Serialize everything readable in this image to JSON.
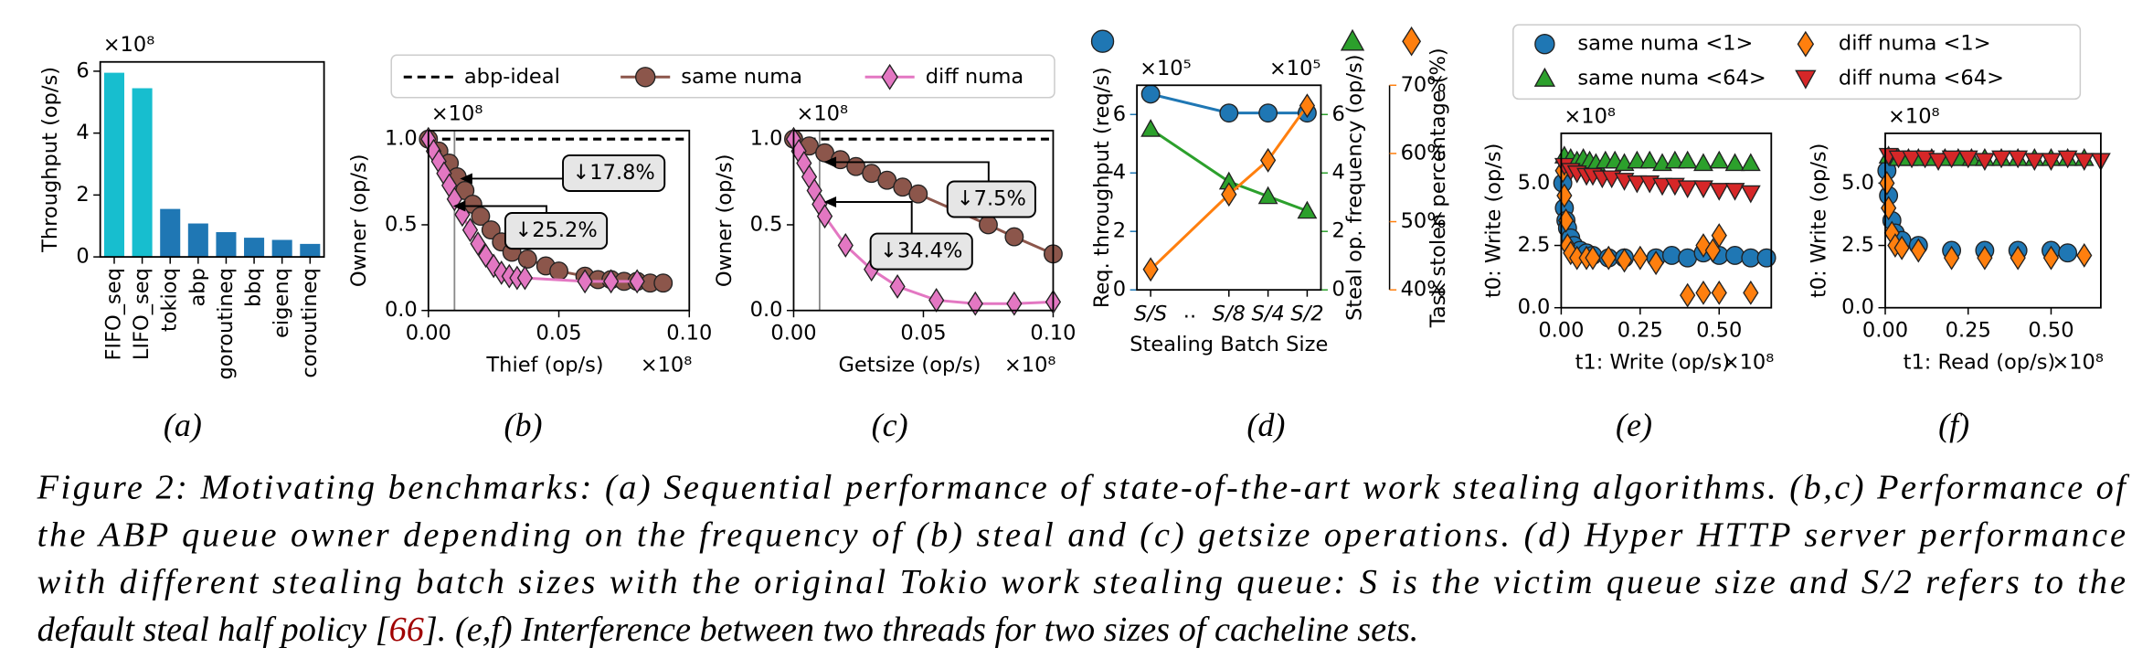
{
  "chart_data": [
    {
      "type": "bar",
      "label": "(a)",
      "ylabel": "Throughput (op/s)",
      "yscale_label": "×10⁸",
      "categories": [
        "FIFO_seq",
        "LIFO_seq",
        "tokioq",
        "abp",
        "goroutineq",
        "bbq",
        "eigenq",
        "coroutineq"
      ],
      "values": [
        5.95,
        5.45,
        1.55,
        1.08,
        0.8,
        0.62,
        0.55,
        0.42
      ],
      "colors": [
        "#17becf",
        "#17becf",
        "#1f77b4",
        "#1f77b4",
        "#1f77b4",
        "#1f77b4",
        "#1f77b4",
        "#1f77b4"
      ],
      "ylim": [
        0,
        6.3
      ],
      "yticks": [
        0,
        2,
        4,
        6
      ]
    },
    {
      "type": "line",
      "label": "(b)",
      "xlabel": "Thief (op/s)",
      "ylabel": "Owner (op/s)",
      "xscale_label": "×10⁸",
      "yscale_label": "×10⁸",
      "xlim": [
        0,
        0.1
      ],
      "xticks": [
        {
          "value": 0,
          "label": "0.00"
        },
        {
          "value": 0.05,
          "label": "0.05"
        },
        {
          "value": 0.1,
          "label": "0.10"
        }
      ],
      "ylim": [
        0,
        1.05
      ],
      "yticks": [
        {
          "value": 0,
          "label": "0.0"
        },
        {
          "value": 0.5,
          "label": "0.5"
        },
        {
          "value": 1,
          "label": "1.0"
        }
      ],
      "vline": 0.01,
      "annotations": [
        "↓17.8%",
        "↓25.2%"
      ],
      "series": [
        {
          "name": "abp-ideal",
          "color": "#000000",
          "dash": true,
          "x": [
            0,
            0.1
          ],
          "values": [
            1,
            1
          ]
        },
        {
          "name": "same numa",
          "color": "#8c564b",
          "marker": "circle",
          "x": [
            0,
            0.004,
            0.008,
            0.011,
            0.014,
            0.017,
            0.02,
            0.024,
            0.028,
            0.032,
            0.038,
            0.045,
            0.05,
            0.06,
            0.065,
            0.07,
            0.075,
            0.08,
            0.085,
            0.09
          ],
          "values": [
            1.0,
            0.93,
            0.86,
            0.78,
            0.7,
            0.62,
            0.55,
            0.47,
            0.4,
            0.34,
            0.3,
            0.26,
            0.23,
            0.2,
            0.18,
            0.18,
            0.17,
            0.17,
            0.16,
            0.16
          ]
        },
        {
          "name": "diff numa",
          "color": "#e377c2",
          "marker": "diamond",
          "x": [
            0,
            0.002,
            0.004,
            0.006,
            0.008,
            0.01,
            0.013,
            0.016,
            0.019,
            0.022,
            0.025,
            0.028,
            0.031,
            0.034,
            0.037,
            0.06,
            0.07,
            0.08
          ],
          "values": [
            1.0,
            0.93,
            0.87,
            0.8,
            0.73,
            0.65,
            0.56,
            0.47,
            0.39,
            0.32,
            0.26,
            0.22,
            0.2,
            0.19,
            0.19,
            0.17,
            0.17,
            0.17
          ]
        }
      ]
    },
    {
      "type": "line",
      "label": "(c)",
      "xlabel": "Getsize (op/s)",
      "ylabel": "Owner (op/s)",
      "xscale_label": "×10⁸",
      "yscale_label": "×10⁸",
      "xlim": [
        0,
        0.1
      ],
      "xticks": [
        {
          "value": 0,
          "label": "0.00"
        },
        {
          "value": 0.05,
          "label": "0.05"
        },
        {
          "value": 0.1,
          "label": "0.10"
        }
      ],
      "ylim": [
        0,
        1.05
      ],
      "yticks": [
        {
          "value": 0,
          "label": "0.0"
        },
        {
          "value": 0.5,
          "label": "0.5"
        },
        {
          "value": 1,
          "label": "1.0"
        }
      ],
      "vline": 0.01,
      "annotations": [
        "↓7.5%",
        "↓34.4%"
      ],
      "series": [
        {
          "color": "#000000",
          "dash": true,
          "x": [
            0,
            0.1
          ],
          "values": [
            1,
            1
          ]
        },
        {
          "color": "#8c564b",
          "marker": "circle",
          "x": [
            0,
            0.006,
            0.012,
            0.018,
            0.024,
            0.03,
            0.036,
            0.042,
            0.048,
            0.075,
            0.085,
            0.1
          ],
          "values": [
            1.0,
            0.96,
            0.92,
            0.88,
            0.84,
            0.8,
            0.76,
            0.72,
            0.68,
            0.5,
            0.43,
            0.33
          ]
        },
        {
          "color": "#e377c2",
          "marker": "diamond",
          "x": [
            0,
            0.002,
            0.004,
            0.006,
            0.008,
            0.01,
            0.012,
            0.02,
            0.03,
            0.04,
            0.055,
            0.07,
            0.085,
            0.1
          ],
          "values": [
            1.0,
            0.93,
            0.86,
            0.78,
            0.7,
            0.62,
            0.55,
            0.38,
            0.24,
            0.14,
            0.06,
            0.04,
            0.04,
            0.05
          ]
        }
      ]
    },
    {
      "type": "line",
      "label": "(d)",
      "xlabel": "Stealing Batch Size",
      "categories": [
        "S/S",
        "S/8",
        "S/4",
        "S/2"
      ],
      "x_gap_label": "..",
      "ylabel": "Req. throughput (req/s)",
      "ylim": [
        0,
        7
      ],
      "yticks": [
        0,
        2,
        4,
        6
      ],
      "yscale_label": "×10⁵",
      "y2label": "Steal op. frequency (op/s)",
      "y2lim": [
        0,
        7
      ],
      "y2ticks": [
        0,
        2,
        4,
        6
      ],
      "y2scale_label": "×10⁵",
      "y3label": "Task stolen percentage (%)",
      "y3lim": [
        40,
        70
      ],
      "y3ticks": [
        {
          "value": 40,
          "label": "40%"
        },
        {
          "value": 50,
          "label": "50%"
        },
        {
          "value": 60,
          "label": "60%"
        },
        {
          "value": 70,
          "label": "70%"
        }
      ],
      "series": [
        {
          "color": "#1f77b4",
          "marker": "circle",
          "values": [
            6.7,
            6.05,
            6.05,
            6.05
          ]
        },
        {
          "color": "#2ca02c",
          "marker": "triangle-up",
          "axis": "y2",
          "values": [
            5.5,
            3.7,
            3.2,
            2.7
          ]
        },
        {
          "color": "#ff7f0e",
          "marker": "diamond",
          "axis": "y3",
          "values": [
            43,
            54,
            59,
            67
          ]
        }
      ]
    },
    {
      "type": "scatter",
      "label": "(e)",
      "xlabel": "t1: Write (op/s)",
      "ylabel": "t0: Write (op/s)",
      "xscale_label": "×10⁸",
      "yscale_label": "×10⁸",
      "xlim": [
        0,
        0.665
      ],
      "xticks": [
        {
          "value": 0,
          "label": "0.00"
        },
        {
          "value": 0.25,
          "label": "0.25"
        },
        {
          "value": 0.5,
          "label": "0.50"
        }
      ],
      "ylim": [
        0,
        7
      ],
      "yticks": [
        {
          "value": 0,
          "label": "0.0"
        },
        {
          "value": 2.5,
          "label": "2.5"
        },
        {
          "value": 5,
          "label": "5.0"
        }
      ],
      "series": [
        {
          "name": "same numa <1>",
          "color": "#1f77b4",
          "marker": "circle",
          "x": [
            0.005,
            0.01,
            0.015,
            0.02,
            0.03,
            0.04,
            0.06,
            0.08,
            0.1,
            0.15,
            0.2,
            0.3,
            0.35,
            0.4,
            0.45,
            0.5,
            0.55,
            0.6,
            0.65
          ],
          "values": [
            5.0,
            4.0,
            3.5,
            3.2,
            2.8,
            2.5,
            2.3,
            2.2,
            2.1,
            2.0,
            2.0,
            2.0,
            2.1,
            2.0,
            2.2,
            2.1,
            2.1,
            2.0,
            2.0
          ]
        },
        {
          "name": "same numa <64>",
          "color": "#2ca02c",
          "marker": "triangle-up",
          "x": [
            0.01,
            0.03,
            0.05,
            0.07,
            0.09,
            0.11,
            0.14,
            0.17,
            0.2,
            0.24,
            0.28,
            0.32,
            0.36,
            0.4,
            0.45,
            0.5,
            0.55,
            0.6
          ],
          "values": [
            6.1,
            6.0,
            5.9,
            6.0,
            5.9,
            5.8,
            5.9,
            5.9,
            5.8,
            5.9,
            5.9,
            5.8,
            5.9,
            5.9,
            5.8,
            5.9,
            5.8,
            5.8
          ]
        },
        {
          "name": "diff numa <1>",
          "color": "#ff7f0e",
          "marker": "diamond",
          "x": [
            0.005,
            0.01,
            0.015,
            0.02,
            0.03,
            0.05,
            0.08,
            0.1,
            0.15,
            0.2,
            0.25,
            0.3,
            0.4,
            0.45,
            0.5,
            0.6,
            0.45,
            0.5,
            0.48
          ],
          "values": [
            5.5,
            4.5,
            3.5,
            2.5,
            2.2,
            2.0,
            2.0,
            2.0,
            2.0,
            1.9,
            2.0,
            1.8,
            0.5,
            0.6,
            0.6,
            0.6,
            2.5,
            2.9,
            2.3
          ]
        },
        {
          "name": "diff numa <64>",
          "color": "#d62728",
          "marker": "triangle-down",
          "x": [
            0.01,
            0.03,
            0.05,
            0.08,
            0.1,
            0.13,
            0.16,
            0.2,
            0.24,
            0.28,
            0.32,
            0.36,
            0.4,
            0.45,
            0.5,
            0.55,
            0.6
          ],
          "values": [
            5.7,
            5.5,
            5.4,
            5.3,
            5.3,
            5.2,
            5.2,
            5.1,
            5.0,
            5.0,
            4.9,
            4.9,
            4.8,
            4.8,
            4.7,
            4.7,
            4.6
          ]
        }
      ]
    },
    {
      "type": "scatter",
      "label": "(f)",
      "xlabel": "t1: Read (op/s)",
      "ylabel": "t0: Write (op/s)",
      "xscale_label": "×10⁸",
      "yscale_label": "×10⁸",
      "xlim": [
        0,
        0.65
      ],
      "xticks": [
        {
          "value": 0,
          "label": "0.00"
        },
        {
          "value": 0.25,
          "label": "0.25"
        },
        {
          "value": 0.5,
          "label": "0.50"
        }
      ],
      "ylim": [
        0,
        7
      ],
      "yticks": [
        {
          "value": 0,
          "label": "0.0"
        },
        {
          "value": 2.5,
          "label": "2.5"
        },
        {
          "value": 5,
          "label": "5.0"
        }
      ],
      "series": [
        {
          "color": "#1f77b4",
          "marker": "circle",
          "x": [
            0.005,
            0.01,
            0.02,
            0.03,
            0.05,
            0.1,
            0.2,
            0.3,
            0.4,
            0.5,
            0.55
          ],
          "values": [
            5.5,
            4.5,
            3.5,
            3.0,
            2.7,
            2.5,
            2.3,
            2.3,
            2.3,
            2.3,
            2.2
          ]
        },
        {
          "color": "#2ca02c",
          "marker": "triangle-up",
          "x": [
            0.01,
            0.04,
            0.07,
            0.1,
            0.14,
            0.18,
            0.22,
            0.26,
            0.3,
            0.35,
            0.4,
            0.45,
            0.5,
            0.55,
            0.6
          ],
          "values": [
            6.1,
            6.0,
            6.0,
            6.0,
            6.0,
            6.0,
            6.0,
            6.0,
            6.0,
            6.0,
            6.0,
            6.0,
            6.0,
            6.0,
            6.0
          ]
        },
        {
          "color": "#ff7f0e",
          "marker": "diamond",
          "x": [
            0.005,
            0.01,
            0.02,
            0.03,
            0.05,
            0.1,
            0.2,
            0.3,
            0.4,
            0.5,
            0.6
          ],
          "values": [
            5.0,
            4.0,
            3.0,
            2.5,
            2.4,
            2.3,
            2.0,
            2.0,
            2.0,
            2.0,
            2.1
          ]
        },
        {
          "color": "#d62728",
          "marker": "triangle-down",
          "x": [
            0.01,
            0.04,
            0.08,
            0.12,
            0.16,
            0.2,
            0.25,
            0.3,
            0.35,
            0.4,
            0.45,
            0.5,
            0.55,
            0.6,
            0.65
          ],
          "values": [
            6.1,
            6.0,
            6.0,
            6.0,
            5.9,
            6.0,
            6.0,
            5.9,
            6.0,
            6.0,
            5.9,
            5.9,
            6.0,
            5.9,
            5.9
          ]
        }
      ]
    }
  ],
  "caption": [
    [
      "Figure 2: Motivating benchmarks: (a) Sequential performance of state-of-the-art work stealing algorithms. (b,c) Performance of"
    ],
    [
      "the ABP queue owner depending on the frequency of (b) steal and (c) getsize operations. (d) Hyper HTTP server performance"
    ],
    [
      "with different stealing batch sizes with the original Tokio work stealing queue: S is the victim queue size and S/2 refers to the"
    ],
    [
      "default steal half policy [",
      "66",
      "]. (e,f) Interference between two threads for two sizes of cacheline sets."
    ]
  ]
}
